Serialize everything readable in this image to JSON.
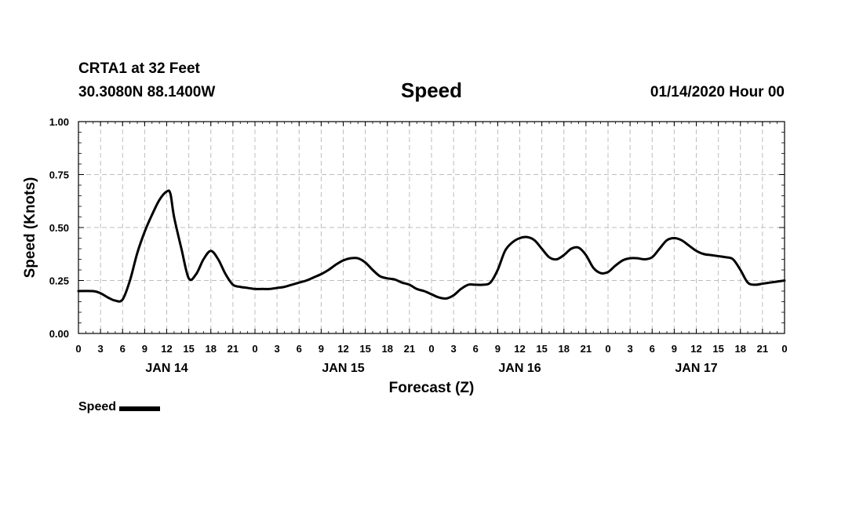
{
  "header": {
    "station": "CRTA1 at 32 Feet",
    "coords": "30.3080N 88.1400W",
    "date": "01/14/2020 Hour 00"
  },
  "legend": {
    "label": "Speed",
    "color": "#000000"
  },
  "chart_data": {
    "type": "line",
    "title": "Speed",
    "xlabel": "Forecast (Z)",
    "ylabel": "Speed (Knots)",
    "xlim": [
      0,
      96
    ],
    "ylim": [
      0,
      1.0
    ],
    "grid": true,
    "legend_position": "bottom-left",
    "y_ticks": [
      "0.00",
      "0.25",
      "0.50",
      "0.75",
      "1.00"
    ],
    "x_tick_labels": [
      "0",
      "3",
      "6",
      "9",
      "12",
      "15",
      "18",
      "21",
      "0",
      "3",
      "6",
      "9",
      "12",
      "15",
      "18",
      "21",
      "0",
      "3",
      "6",
      "9",
      "12",
      "15",
      "18",
      "21",
      "0",
      "3",
      "6",
      "9",
      "12",
      "15",
      "18",
      "21",
      "0"
    ],
    "day_labels": [
      {
        "label": "JAN 14",
        "at_hour": 12
      },
      {
        "label": "JAN 15",
        "at_hour": 36
      },
      {
        "label": "JAN 16",
        "at_hour": 60
      },
      {
        "label": "JAN 17",
        "at_hour": 84
      }
    ],
    "series": [
      {
        "name": "Speed",
        "color": "#000000",
        "x": [
          0,
          2,
          3,
          4,
          5,
          6,
          7,
          8,
          9,
          10,
          11,
          12,
          12.5,
          13,
          14,
          15,
          16,
          17,
          18,
          19,
          20,
          21,
          22,
          23,
          24,
          25,
          26,
          27,
          28,
          29,
          30,
          31,
          32,
          33,
          34,
          35,
          36,
          37,
          38,
          39,
          40,
          41,
          42,
          43,
          44,
          45,
          46,
          47,
          48,
          49,
          50,
          51,
          52,
          53,
          54,
          55,
          56,
          57,
          58,
          59,
          60,
          61,
          62,
          63,
          64,
          65,
          66,
          67,
          68,
          69,
          70,
          71,
          72,
          73,
          74,
          75,
          76,
          77,
          78,
          79,
          80,
          81,
          82,
          83,
          84,
          85,
          86,
          87,
          88,
          89,
          90,
          91,
          92,
          93,
          94,
          95,
          96
        ],
        "values": [
          0.2,
          0.2,
          0.19,
          0.17,
          0.155,
          0.16,
          0.25,
          0.38,
          0.48,
          0.56,
          0.63,
          0.67,
          0.66,
          0.55,
          0.4,
          0.26,
          0.28,
          0.35,
          0.39,
          0.35,
          0.28,
          0.23,
          0.22,
          0.215,
          0.21,
          0.21,
          0.21,
          0.215,
          0.22,
          0.23,
          0.24,
          0.25,
          0.265,
          0.28,
          0.3,
          0.325,
          0.345,
          0.355,
          0.355,
          0.335,
          0.3,
          0.27,
          0.26,
          0.255,
          0.24,
          0.23,
          0.21,
          0.2,
          0.185,
          0.17,
          0.165,
          0.18,
          0.21,
          0.23,
          0.23,
          0.23,
          0.24,
          0.3,
          0.39,
          0.43,
          0.45,
          0.455,
          0.44,
          0.4,
          0.36,
          0.35,
          0.37,
          0.4,
          0.405,
          0.37,
          0.31,
          0.285,
          0.29,
          0.32,
          0.345,
          0.355,
          0.355,
          0.35,
          0.36,
          0.4,
          0.44,
          0.45,
          0.44,
          0.415,
          0.39,
          0.375,
          0.37,
          0.365,
          0.36,
          0.35,
          0.3,
          0.24,
          0.23,
          0.235,
          0.24,
          0.245,
          0.25
        ]
      }
    ]
  }
}
